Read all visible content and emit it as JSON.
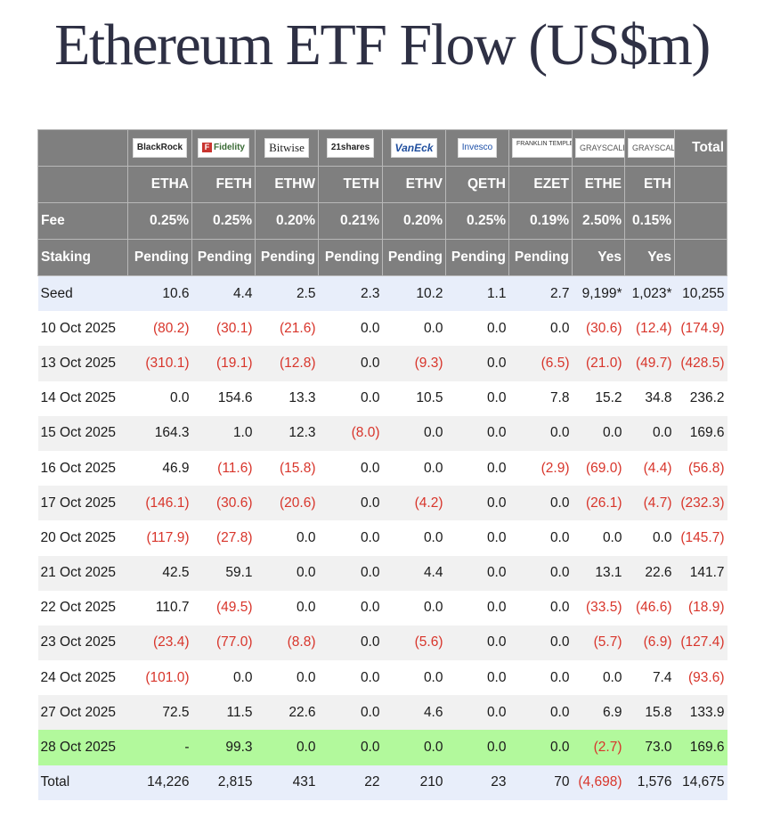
{
  "title": "Ethereum ETF Flow (US$m)",
  "colors": {
    "header_bg": "#7f7f7f",
    "negative": "#d8352b",
    "seed_bg": "#e8eefa",
    "highlight_bg": "#b2f99c",
    "alt_bg": "#f1f1f1"
  },
  "logos": [
    "BlackRock",
    "Fidelity",
    "Bitwise",
    "21shares",
    "VanEck",
    "Invesco",
    "FRANKLIN TEMPLETON",
    "GRAYSCALE",
    "GRAYSCALE"
  ],
  "total_header": "Total",
  "tickers": [
    "ETHA",
    "FETH",
    "ETHW",
    "TETH",
    "ETHV",
    "QETH",
    "EZET",
    "ETHE",
    "ETH"
  ],
  "fee": {
    "label": "Fee",
    "values": [
      "0.25%",
      "0.25%",
      "0.20%",
      "0.21%",
      "0.20%",
      "0.25%",
      "0.19%",
      "2.50%",
      "0.15%"
    ]
  },
  "staking": {
    "label": "Staking",
    "values": [
      "Pending",
      "Pending",
      "Pending",
      "Pending",
      "Pending",
      "Pending",
      "Pending",
      "Yes",
      "Yes"
    ]
  },
  "rows": [
    {
      "label": "Seed",
      "values": [
        "10.6",
        "4.4",
        "2.5",
        "2.3",
        "10.2",
        "1.1",
        "2.7",
        "9,199*",
        "1,023*",
        "10,255"
      ]
    },
    {
      "label": "10 Oct 2025",
      "values": [
        "(80.2)",
        "(30.1)",
        "(21.6)",
        "0.0",
        "0.0",
        "0.0",
        "0.0",
        "(30.6)",
        "(12.4)",
        "(174.9)"
      ]
    },
    {
      "label": "13 Oct 2025",
      "values": [
        "(310.1)",
        "(19.1)",
        "(12.8)",
        "0.0",
        "(9.3)",
        "0.0",
        "(6.5)",
        "(21.0)",
        "(49.7)",
        "(428.5)"
      ]
    },
    {
      "label": "14 Oct 2025",
      "values": [
        "0.0",
        "154.6",
        "13.3",
        "0.0",
        "10.5",
        "0.0",
        "7.8",
        "15.2",
        "34.8",
        "236.2"
      ]
    },
    {
      "label": "15 Oct 2025",
      "values": [
        "164.3",
        "1.0",
        "12.3",
        "(8.0)",
        "0.0",
        "0.0",
        "0.0",
        "0.0",
        "0.0",
        "169.6"
      ]
    },
    {
      "label": "16 Oct 2025",
      "values": [
        "46.9",
        "(11.6)",
        "(15.8)",
        "0.0",
        "0.0",
        "0.0",
        "(2.9)",
        "(69.0)",
        "(4.4)",
        "(56.8)"
      ]
    },
    {
      "label": "17 Oct 2025",
      "values": [
        "(146.1)",
        "(30.6)",
        "(20.6)",
        "0.0",
        "(4.2)",
        "0.0",
        "0.0",
        "(26.1)",
        "(4.7)",
        "(232.3)"
      ]
    },
    {
      "label": "20 Oct 2025",
      "values": [
        "(117.9)",
        "(27.8)",
        "0.0",
        "0.0",
        "0.0",
        "0.0",
        "0.0",
        "0.0",
        "0.0",
        "(145.7)"
      ]
    },
    {
      "label": "21 Oct 2025",
      "values": [
        "42.5",
        "59.1",
        "0.0",
        "0.0",
        "4.4",
        "0.0",
        "0.0",
        "13.1",
        "22.6",
        "141.7"
      ]
    },
    {
      "label": "22 Oct 2025",
      "values": [
        "110.7",
        "(49.5)",
        "0.0",
        "0.0",
        "0.0",
        "0.0",
        "0.0",
        "(33.5)",
        "(46.6)",
        "(18.9)"
      ]
    },
    {
      "label": "23 Oct 2025",
      "values": [
        "(23.4)",
        "(77.0)",
        "(8.8)",
        "0.0",
        "(5.6)",
        "0.0",
        "0.0",
        "(5.7)",
        "(6.9)",
        "(127.4)"
      ]
    },
    {
      "label": "24 Oct 2025",
      "values": [
        "(101.0)",
        "0.0",
        "0.0",
        "0.0",
        "0.0",
        "0.0",
        "0.0",
        "0.0",
        "7.4",
        "(93.6)"
      ]
    },
    {
      "label": "27 Oct 2025",
      "values": [
        "72.5",
        "11.5",
        "22.6",
        "0.0",
        "4.6",
        "0.0",
        "0.0",
        "6.9",
        "15.8",
        "133.9"
      ]
    },
    {
      "label": "28 Oct 2025",
      "values": [
        "-",
        "99.3",
        "0.0",
        "0.0",
        "0.0",
        "0.0",
        "0.0",
        "(2.7)",
        "73.0",
        "169.6"
      ]
    },
    {
      "label": "Total",
      "values": [
        "14,226",
        "2,815",
        "431",
        "22",
        "210",
        "23",
        "70",
        "(4,698)",
        "1,576",
        "14,675"
      ]
    }
  ]
}
